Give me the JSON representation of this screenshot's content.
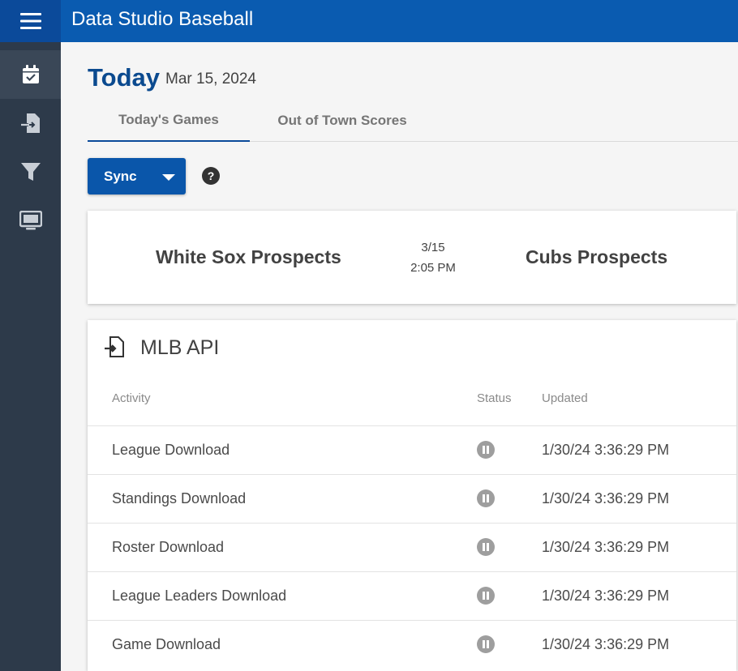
{
  "app": {
    "title": "Data Studio Baseball"
  },
  "sidebar": {
    "menu_icon": "hamburger-icon",
    "items": [
      {
        "icon": "calendar-check-icon",
        "active": true
      },
      {
        "icon": "file-import-icon",
        "active": false
      },
      {
        "icon": "filter-icon",
        "active": false
      },
      {
        "icon": "monitor-icon",
        "active": false
      }
    ]
  },
  "header": {
    "title": "Today",
    "date": "Mar 15, 2024"
  },
  "tabs": [
    {
      "label": "Today's Games",
      "active": true
    },
    {
      "label": "Out of Town Scores",
      "active": false
    }
  ],
  "toolbar": {
    "sync_label": "Sync",
    "help_label": "?"
  },
  "game": {
    "away_team": "White Sox Prospects",
    "home_team": "Cubs Prospects",
    "date": "3/15",
    "time": "2:05 PM"
  },
  "api_panel": {
    "title": "MLB API",
    "columns": [
      "Activity",
      "Status",
      "Updated"
    ],
    "rows": [
      {
        "activity": "League Download",
        "status": "paused",
        "updated": "1/30/24 3:36:29 PM"
      },
      {
        "activity": "Standings Download",
        "status": "paused",
        "updated": "1/30/24 3:36:29 PM"
      },
      {
        "activity": "Roster Download",
        "status": "paused",
        "updated": "1/30/24 3:36:29 PM"
      },
      {
        "activity": "League Leaders Download",
        "status": "paused",
        "updated": "1/30/24 3:36:29 PM"
      },
      {
        "activity": "Game Download",
        "status": "paused",
        "updated": "1/30/24 3:36:29 PM"
      }
    ]
  },
  "colors": {
    "brand": "#0a5bb0",
    "sidebar": "#2d3a4a",
    "title": "#0b4a8f"
  }
}
